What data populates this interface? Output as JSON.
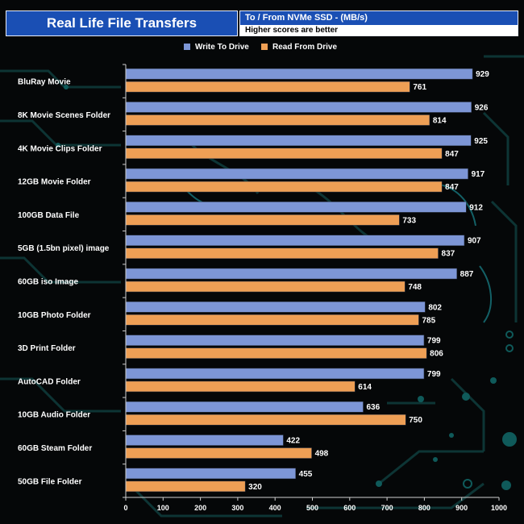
{
  "header": {
    "title": "Real Life File Transfers",
    "subtitle": "To /  From NVMe  SSD - (MB/s)",
    "note": "Higher scores are better"
  },
  "colors": {
    "write": "#7d96d6",
    "read": "#ee9f55",
    "text": "#ffffff",
    "title_bg": "#1a4fb4",
    "axis": "#cfcfcf"
  },
  "chart_data": {
    "type": "bar",
    "orientation": "horizontal",
    "title": "Real Life File Transfers",
    "subtitle": "To /  From NVMe  SSD - (MB/s)",
    "categories": [
      "BluRay Movie",
      "8K Movie Scenes Folder",
      "4K Movie Clips Folder",
      "12GB Movie Folder",
      "100GB Data File",
      "5GB (1.5bn pixel) image",
      "60GB iso Image",
      "10GB Photo Folder",
      "3D Print Folder",
      "AutoCAD Folder",
      "10GB Audio Folder",
      "60GB Steam Folder",
      "50GB File Folder"
    ],
    "series": [
      {
        "name": "Write To  Drive",
        "values": [
          929,
          926,
          925,
          917,
          912,
          907,
          887,
          802,
          799,
          799,
          636,
          422,
          455
        ]
      },
      {
        "name": "Read From  Drive",
        "values": [
          761,
          814,
          847,
          847,
          733,
          837,
          748,
          785,
          806,
          614,
          750,
          498,
          320
        ]
      }
    ],
    "xlim": [
      0,
      1000
    ],
    "xticks": [
      0,
      100,
      200,
      300,
      400,
      500,
      600,
      700,
      800,
      900,
      1000
    ],
    "legend": "top-center",
    "grid": false
  }
}
